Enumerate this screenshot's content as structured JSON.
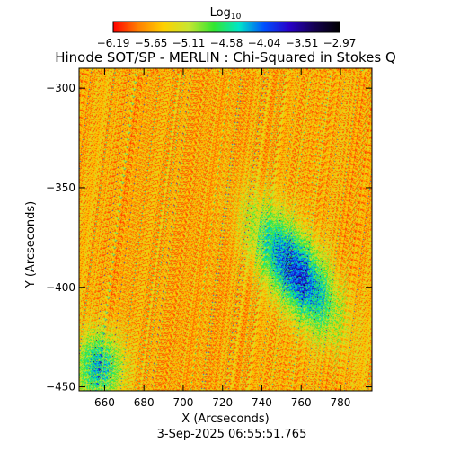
{
  "chart_data": {
    "type": "heatmap",
    "title": "Hinode SOT/SP - MERLIN : Chi-Squared in Stokes Q",
    "colorbar": {
      "label_main": "Log",
      "label_sub": "10",
      "ticks": [
        "-6.19",
        "-5.65",
        "-5.11",
        "-4.58",
        "-4.04",
        "-3.51",
        "-2.97"
      ],
      "range": [
        -6.19,
        -2.97
      ],
      "colormap": [
        "#ff0000",
        "#ff8000",
        "#ffd000",
        "#c8e632",
        "#32e632",
        "#00e6c8",
        "#0050ff",
        "#2800c8",
        "#140050",
        "#000000"
      ]
    },
    "xlabel": "X (Arcseconds)",
    "ylabel": "Y (Arcseconds)",
    "xlim": [
      647,
      796
    ],
    "ylim": [
      -452,
      -290
    ],
    "x_ticks": [
      660,
      680,
      700,
      720,
      740,
      760,
      780
    ],
    "y_ticks": [
      -300,
      -350,
      -400,
      -450
    ],
    "timestamp": "3-Sep-2025 06:55:51.765",
    "background_level": -5.6,
    "features": [
      {
        "name": "active-region",
        "x": 757,
        "y": -392,
        "peak_level": -3.9
      },
      {
        "name": "lower-left-patch",
        "x": 657,
        "y": -440,
        "peak_level": -4.3
      }
    ]
  }
}
